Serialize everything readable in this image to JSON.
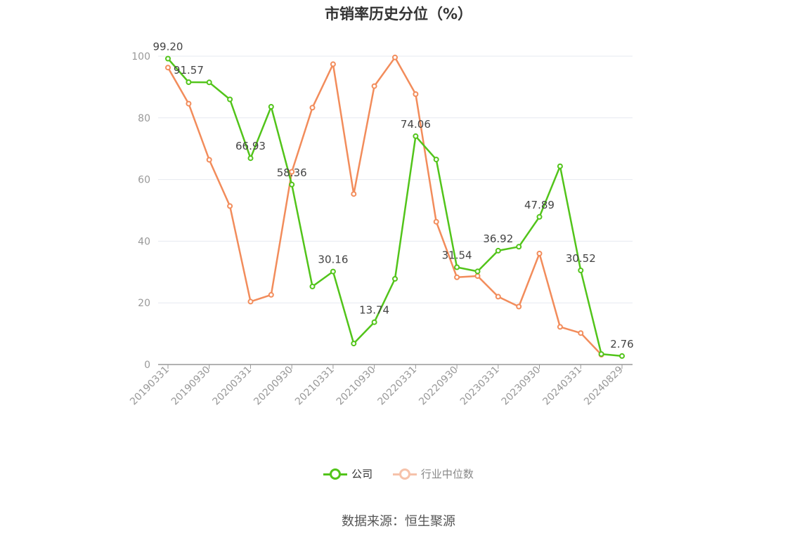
{
  "chart_data": {
    "type": "line",
    "title": "市销率历史分位（%）",
    "xlabel": "",
    "ylabel": "",
    "ylim": [
      0,
      100
    ],
    "yticks": [
      0,
      20,
      40,
      60,
      80,
      100
    ],
    "x": [
      "20190331",
      "20190630",
      "20190930",
      "20191231",
      "20200331",
      "20200630",
      "20200930",
      "20201231",
      "20210331",
      "20210630",
      "20210930",
      "20211231",
      "20220331",
      "20220630",
      "20220930",
      "20221231",
      "20230331",
      "20230630",
      "20230930",
      "20231231",
      "20240331",
      "20240630",
      "20240829"
    ],
    "xtick_labels": [
      "20190331",
      "20190930",
      "20200331",
      "20200930",
      "20210331",
      "20210930",
      "20220331",
      "20220930",
      "20230331",
      "20230930",
      "20240331",
      "20240829"
    ],
    "series": [
      {
        "name": "公司",
        "color": "#52c41a",
        "values": [
          99.2,
          91.57,
          91.5,
          86.0,
          66.93,
          83.6,
          58.36,
          25.3,
          30.16,
          6.8,
          13.74,
          27.8,
          74.06,
          66.5,
          31.54,
          30.2,
          36.92,
          38.2,
          47.89,
          64.3,
          30.52,
          3.4,
          2.76
        ],
        "labels": {
          "0": "99.20",
          "1": "91.57",
          "4": "66.93",
          "6": "58.36",
          "8": "30.16",
          "10": "13.74",
          "12": "74.06",
          "14": "31.54",
          "16": "36.92",
          "18": "47.89",
          "20": "30.52",
          "22": "2.76"
        }
      },
      {
        "name": "行业中位数",
        "color": "#f28c5b",
        "values": [
          96.3,
          84.6,
          66.4,
          51.4,
          20.4,
          22.6,
          62.5,
          83.3,
          97.4,
          55.3,
          90.3,
          99.6,
          87.7,
          46.3,
          28.3,
          28.7,
          22.0,
          18.8,
          36.0,
          12.2,
          10.2,
          3.2,
          null
        ]
      }
    ],
    "legend_position": "bottom-center",
    "grid": true
  },
  "legend": {
    "company": "公司",
    "industry": "行业中位数"
  },
  "source": "数据来源：恒生聚源"
}
